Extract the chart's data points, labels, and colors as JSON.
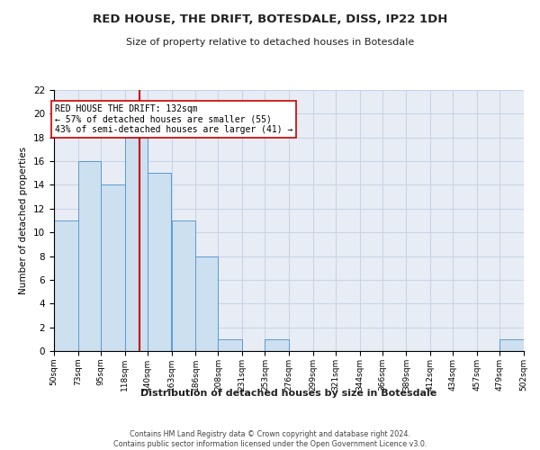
{
  "title": "RED HOUSE, THE DRIFT, BOTESDALE, DISS, IP22 1DH",
  "subtitle": "Size of property relative to detached houses in Botesdale",
  "xlabel": "Distribution of detached houses by size in Botesdale",
  "ylabel": "Number of detached properties",
  "bar_edges": [
    50,
    73,
    95,
    118,
    140,
    163,
    186,
    208,
    231,
    253,
    276,
    299,
    321,
    344,
    366,
    389,
    412,
    434,
    457,
    479,
    502
  ],
  "bar_heights": [
    11,
    16,
    14,
    18,
    15,
    11,
    8,
    1,
    0,
    1,
    0,
    0,
    0,
    0,
    0,
    0,
    0,
    0,
    0,
    1
  ],
  "bar_color": "#cce0f0",
  "bar_edge_color": "#5b9bd5",
  "vline_x": 132,
  "vline_color": "#cc0000",
  "annotation_text": "RED HOUSE THE DRIFT: 132sqm\n← 57% of detached houses are smaller (55)\n43% of semi-detached houses are larger (41) →",
  "annotation_box_color": "#ffffff",
  "annotation_box_edge_color": "#cc0000",
  "ylim": [
    0,
    22
  ],
  "yticks": [
    0,
    2,
    4,
    6,
    8,
    10,
    12,
    14,
    16,
    18,
    20,
    22
  ],
  "tick_labels": [
    "50sqm",
    "73sqm",
    "95sqm",
    "118sqm",
    "140sqm",
    "163sqm",
    "186sqm",
    "208sqm",
    "231sqm",
    "253sqm",
    "276sqm",
    "299sqm",
    "321sqm",
    "344sqm",
    "366sqm",
    "389sqm",
    "412sqm",
    "434sqm",
    "457sqm",
    "479sqm",
    "502sqm"
  ],
  "footer_text": "Contains HM Land Registry data © Crown copyright and database right 2024.\nContains public sector information licensed under the Open Government Licence v3.0.",
  "bg_color": "#ffffff",
  "grid_color": "#c8d4e8",
  "axes_bg_color": "#e8edf5"
}
